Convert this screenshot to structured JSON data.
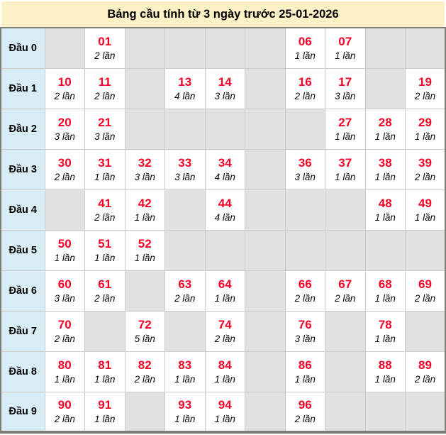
{
  "title": "Bảng cầu tính từ 3 ngày trước 25-01-2026",
  "colors": {
    "title_bg": "#fcf0c6",
    "label_bg": "#d8ecf6",
    "empty_bg": "#e1e1e2",
    "filled_bg": "#ffffff",
    "number_color": "#fa0026",
    "border_dark": "#7d7d75",
    "border_light": "#cbcbcb"
  },
  "rows": [
    {
      "label": "Đầu 0",
      "cells": [
        null,
        {
          "number": "01",
          "count": "2 lần"
        },
        null,
        null,
        null,
        null,
        {
          "number": "06",
          "count": "1 lần"
        },
        {
          "number": "07",
          "count": "1 lần"
        },
        null,
        null
      ]
    },
    {
      "label": "Đầu 1",
      "cells": [
        {
          "number": "10",
          "count": "2 lần"
        },
        {
          "number": "11",
          "count": "2 lần"
        },
        null,
        {
          "number": "13",
          "count": "4 lần"
        },
        {
          "number": "14",
          "count": "3 lần"
        },
        null,
        {
          "number": "16",
          "count": "2 lần"
        },
        {
          "number": "17",
          "count": "3 lần"
        },
        null,
        {
          "number": "19",
          "count": "2 lần"
        }
      ]
    },
    {
      "label": "Đầu 2",
      "cells": [
        {
          "number": "20",
          "count": "3 lần"
        },
        {
          "number": "21",
          "count": "3 lần"
        },
        null,
        null,
        null,
        null,
        null,
        {
          "number": "27",
          "count": "1 lần"
        },
        {
          "number": "28",
          "count": "1 lần"
        },
        {
          "number": "29",
          "count": "1 lần"
        }
      ]
    },
    {
      "label": "Đầu 3",
      "cells": [
        {
          "number": "30",
          "count": "2 lần"
        },
        {
          "number": "31",
          "count": "1 lần"
        },
        {
          "number": "32",
          "count": "3 lần"
        },
        {
          "number": "33",
          "count": "3 lần"
        },
        {
          "number": "34",
          "count": "4 lần"
        },
        null,
        {
          "number": "36",
          "count": "3 lần"
        },
        {
          "number": "37",
          "count": "1 lần"
        },
        {
          "number": "38",
          "count": "1 lần"
        },
        {
          "number": "39",
          "count": "2 lần"
        }
      ]
    },
    {
      "label": "Đầu 4",
      "cells": [
        null,
        {
          "number": "41",
          "count": "2 lần"
        },
        {
          "number": "42",
          "count": "1 lần"
        },
        null,
        {
          "number": "44",
          "count": "4 lần"
        },
        null,
        null,
        null,
        {
          "number": "48",
          "count": "1 lần"
        },
        {
          "number": "49",
          "count": "1 lần"
        }
      ]
    },
    {
      "label": "Đầu 5",
      "cells": [
        {
          "number": "50",
          "count": "1 lần"
        },
        {
          "number": "51",
          "count": "1 lần"
        },
        {
          "number": "52",
          "count": "1 lần"
        },
        null,
        null,
        null,
        null,
        null,
        null,
        null
      ]
    },
    {
      "label": "Đầu 6",
      "cells": [
        {
          "number": "60",
          "count": "3 lần"
        },
        {
          "number": "61",
          "count": "2 lần"
        },
        null,
        {
          "number": "63",
          "count": "2 lần"
        },
        {
          "number": "64",
          "count": "1 lần"
        },
        null,
        {
          "number": "66",
          "count": "2 lần"
        },
        {
          "number": "67",
          "count": "2 lần"
        },
        {
          "number": "68",
          "count": "1 lần"
        },
        {
          "number": "69",
          "count": "2 lần"
        }
      ]
    },
    {
      "label": "Đầu 7",
      "cells": [
        {
          "number": "70",
          "count": "2 lần"
        },
        null,
        {
          "number": "72",
          "count": "5 lần"
        },
        null,
        {
          "number": "74",
          "count": "2 lần"
        },
        null,
        {
          "number": "76",
          "count": "3 lần"
        },
        null,
        {
          "number": "78",
          "count": "1 lần"
        },
        null
      ]
    },
    {
      "label": "Đầu 8",
      "cells": [
        {
          "number": "80",
          "count": "1 lần"
        },
        {
          "number": "81",
          "count": "1 lần"
        },
        {
          "number": "82",
          "count": "2 lần"
        },
        {
          "number": "83",
          "count": "1 lần"
        },
        {
          "number": "84",
          "count": "1 lần"
        },
        null,
        {
          "number": "86",
          "count": "1 lần"
        },
        null,
        {
          "number": "88",
          "count": "1 lần"
        },
        {
          "number": "89",
          "count": "2 lần"
        }
      ]
    },
    {
      "label": "Đầu 9",
      "cells": [
        {
          "number": "90",
          "count": "2 lần"
        },
        {
          "number": "91",
          "count": "1 lần"
        },
        null,
        {
          "number": "93",
          "count": "1 lần"
        },
        {
          "number": "94",
          "count": "1 lần"
        },
        null,
        {
          "number": "96",
          "count": "2 lần"
        },
        null,
        null,
        null
      ]
    }
  ]
}
